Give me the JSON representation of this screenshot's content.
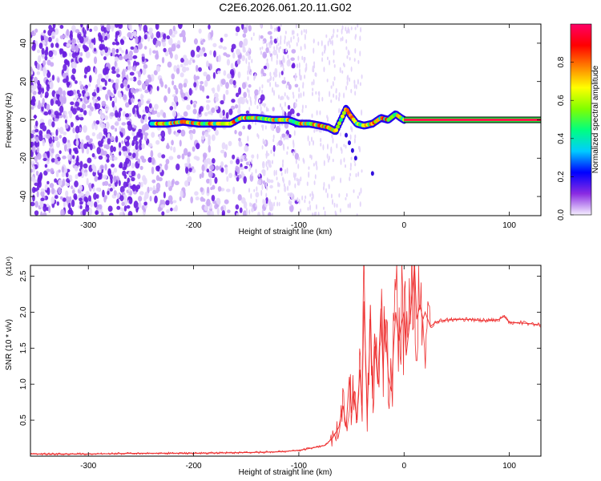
{
  "chart_data": [
    {
      "type": "heatmap",
      "title": "C2E6.2026.061.20.11.G02",
      "xlabel": "Height of straight line (km)",
      "ylabel": "Frequency (Hz)",
      "xlim": [
        -355,
        130
      ],
      "ylim": [
        -50,
        50
      ],
      "xticks": [
        -300,
        -200,
        -100,
        0,
        100
      ],
      "yticks": [
        -40,
        -20,
        0,
        20,
        40
      ],
      "colorbar": {
        "label": "Normalized spectral amplitude",
        "range": [
          0,
          1
        ],
        "ticks": [
          0.0,
          0.2,
          0.4,
          0.6,
          0.8
        ],
        "colors": [
          "#f5efff",
          "#8a2be2",
          "#0000ff",
          "#00ccff",
          "#00ff80",
          "#80ff00",
          "#ffff00",
          "#ff8000",
          "#ff0000",
          "#ff0066"
        ]
      },
      "ridge": {
        "x": [
          -240,
          -225,
          -210,
          -195,
          -180,
          -165,
          -155,
          -140,
          -125,
          -110,
          -100,
          -90,
          -80,
          -72,
          -65,
          -60,
          -55,
          -52,
          -45,
          -38,
          -30,
          -22,
          -15,
          -8,
          -3,
          0,
          130
        ],
        "y": [
          -2,
          -2,
          -1,
          -2,
          -2,
          -2,
          1,
          1,
          0,
          0,
          -2,
          -2,
          -3,
          -4,
          -6,
          0,
          6,
          3,
          -2,
          -3,
          -2,
          1,
          0,
          3,
          1,
          0,
          0
        ]
      },
      "carrier": {
        "x_start": 0,
        "x_end": 130,
        "y": 0
      }
    },
    {
      "type": "line",
      "xlabel": "Height of straight line (km)",
      "ylabel": "SNR (10 * v/v)",
      "y_multiplier": "(x10⁴)",
      "xlim": [
        -355,
        130
      ],
      "ylim": [
        0,
        2.65
      ],
      "xticks": [
        -300,
        -200,
        -100,
        0,
        100
      ],
      "yticks": [
        0.5,
        1.0,
        1.5,
        2.0,
        2.5
      ],
      "color": "#ee3333",
      "series": [
        {
          "x": [
            -355,
            -300,
            -250,
            -200,
            -150,
            -120,
            -100,
            -85,
            -75,
            -68,
            -62,
            -58,
            -55,
            -52,
            -50,
            -48,
            -45,
            -42,
            -40,
            -38,
            -35,
            -33,
            -32,
            -30,
            -28,
            -25,
            -22,
            -20,
            -18,
            -15,
            -12,
            -10,
            -8,
            -5,
            -3,
            0,
            2,
            5,
            8,
            10,
            12,
            15,
            18,
            20,
            25,
            30,
            35,
            40,
            50,
            60,
            70,
            80,
            90,
            95,
            100,
            110,
            120,
            130
          ],
          "y": [
            0.03,
            0.03,
            0.04,
            0.04,
            0.05,
            0.06,
            0.08,
            0.12,
            0.15,
            0.25,
            0.4,
            0.7,
            0.4,
            1.1,
            0.6,
            0.9,
            0.5,
            1.2,
            0.7,
            2.15,
            0.6,
            1.4,
            2.1,
            0.8,
            1.7,
            1.0,
            2.05,
            1.2,
            1.9,
            1.1,
            0.9,
            1.5,
            2.0,
            1.6,
            1.8,
            2.0,
            1.4,
            1.8,
            2.3,
            2.65,
            1.9,
            2.1,
            1.9,
            2.0,
            1.8,
            1.86,
            1.88,
            1.89,
            1.9,
            1.9,
            1.89,
            1.88,
            1.9,
            1.94,
            1.86,
            1.85,
            1.84,
            1.82
          ]
        }
      ]
    }
  ]
}
